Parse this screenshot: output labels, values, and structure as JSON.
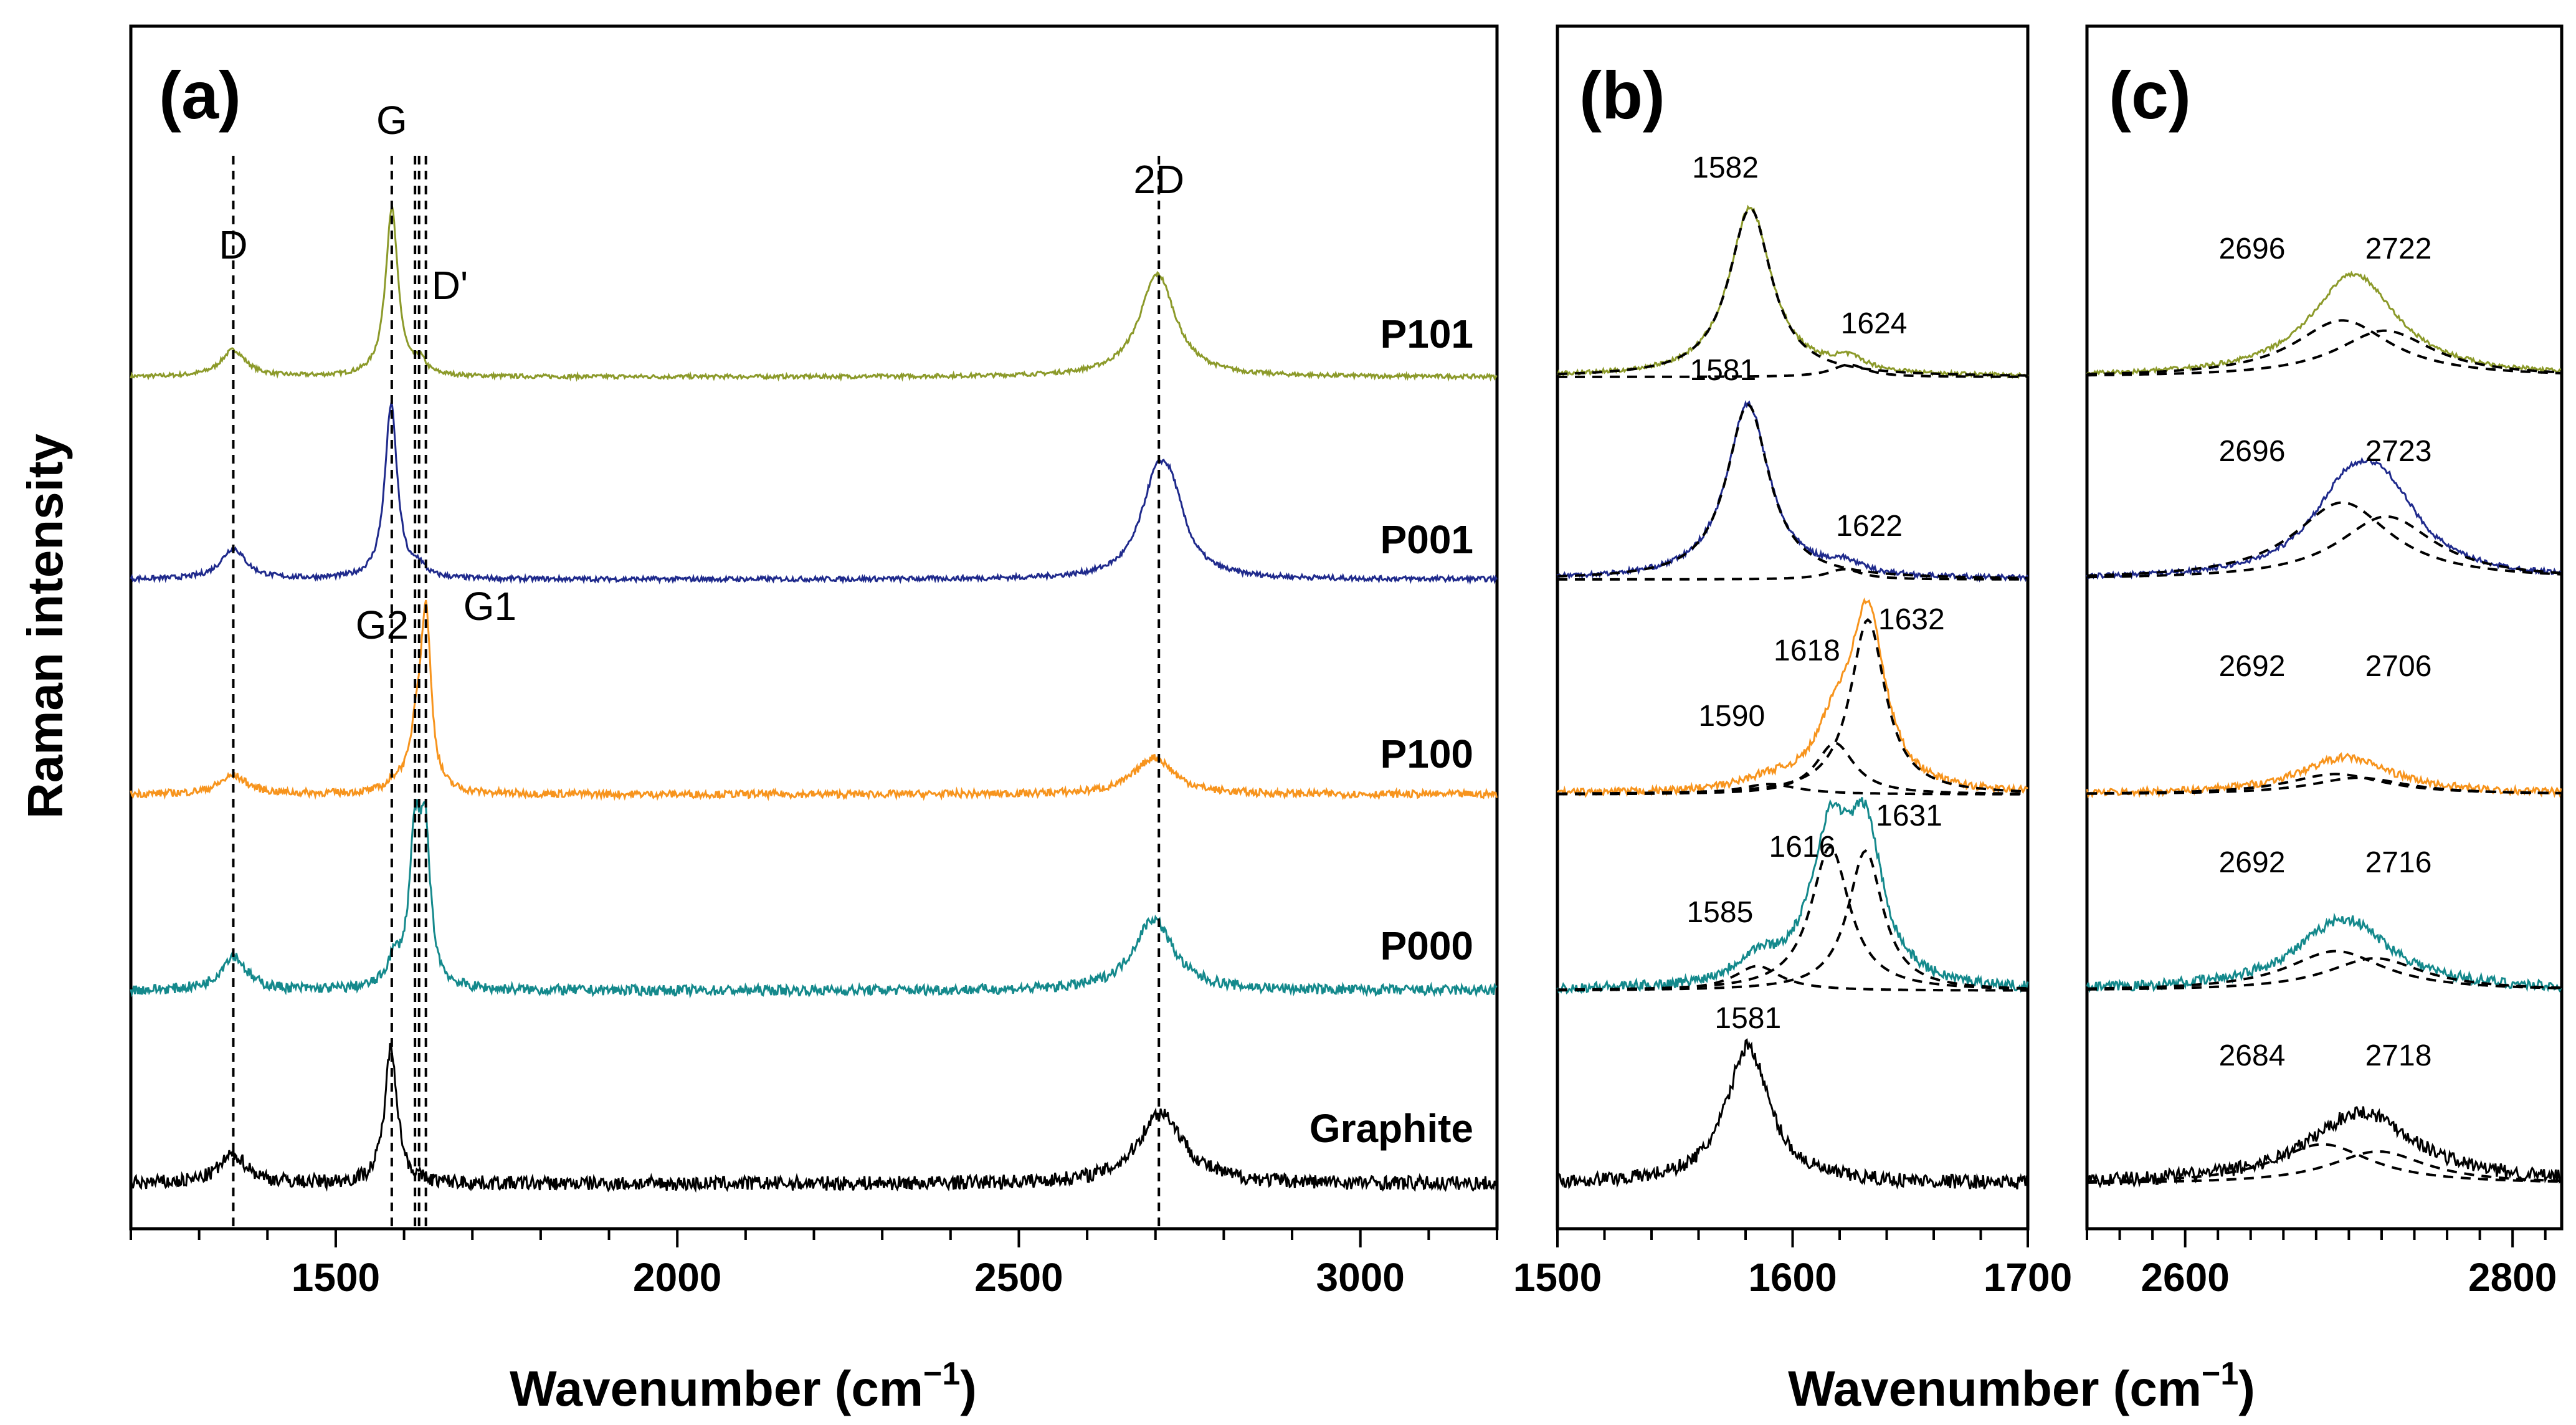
{
  "chart_data": [
    {
      "panel": "(a)",
      "type": "line",
      "xlabel": "Wavenumber (cm",
      "xlabel_sup": "−1",
      "xlabel_close": ")",
      "ylabel": "Raman intensity",
      "xlim": [
        1200,
        3200
      ],
      "xticks": [
        "1500",
        "2000",
        "2500",
        "3000"
      ],
      "peak_lines": [
        {
          "label": "D",
          "x": 1350
        },
        {
          "label": "G",
          "x": 1582
        },
        {
          "label": "D'",
          "x": 1622
        },
        {
          "label": "G2",
          "x": 1616
        },
        {
          "label": "G1",
          "x": 1632
        },
        {
          "label": "2D",
          "x": 2705
        }
      ],
      "series": [
        {
          "name": "P101",
          "color": "#8c9a2a",
          "noise": 0.01,
          "peaks": [
            [
              1350,
              0.13,
              22
            ],
            [
              1582,
              0.82,
              11
            ],
            [
              1624,
              0.06,
              9
            ],
            [
              2703,
              0.5,
              32
            ]
          ]
        },
        {
          "name": "P001",
          "color": "#1f2a8c",
          "noise": 0.012,
          "peaks": [
            [
              1350,
              0.15,
              22
            ],
            [
              1581,
              0.85,
              11
            ],
            [
              1622,
              0.05,
              9
            ],
            [
              2700,
              0.38,
              28
            ],
            [
              2723,
              0.3,
              26
            ]
          ]
        },
        {
          "name": "P100",
          "color": "#f7941d",
          "noise": 0.018,
          "peaks": [
            [
              1350,
              0.09,
              25
            ],
            [
              1590,
              0.05,
              15
            ],
            [
              1618,
              0.25,
              10
            ],
            [
              1632,
              0.85,
              9
            ],
            [
              2698,
              0.18,
              35
            ]
          ]
        },
        {
          "name": "P000",
          "color": "#14898c",
          "noise": 0.025,
          "peaks": [
            [
              1350,
              0.17,
              22
            ],
            [
              1585,
              0.12,
              12
            ],
            [
              1616,
              0.7,
              10
            ],
            [
              1631,
              0.68,
              9
            ],
            [
              2697,
              0.35,
              35
            ]
          ]
        },
        {
          "name": "Graphite",
          "color": "#000000",
          "noise": 0.035,
          "peaks": [
            [
              1350,
              0.14,
              25
            ],
            [
              1581,
              0.67,
              11
            ],
            [
              2708,
              0.35,
              40
            ]
          ]
        }
      ]
    },
    {
      "panel": "(b)",
      "type": "line",
      "xlim": [
        1500,
        1700
      ],
      "xticks": [
        "1500",
        "1600",
        "1700"
      ],
      "fits": [
        {
          "series": "P101",
          "peak_labels": [
            "1582",
            "1624"
          ],
          "peak_positions": [
            1582,
            1624
          ]
        },
        {
          "series": "P001",
          "peak_labels": [
            "1581",
            "1622"
          ],
          "peak_positions": [
            1581,
            1622
          ]
        },
        {
          "series": "P100",
          "peak_labels": [
            "1590",
            "1618",
            "1632"
          ],
          "peak_positions": [
            1590,
            1618,
            1632
          ]
        },
        {
          "series": "P000",
          "peak_labels": [
            "1585",
            "1616",
            "1631"
          ],
          "peak_positions": [
            1585,
            1616,
            1631
          ]
        },
        {
          "series": "Graphite",
          "peak_labels": [
            "1581"
          ],
          "peak_positions": [
            1581
          ]
        }
      ]
    },
    {
      "panel": "(c)",
      "type": "line",
      "xlim": [
        2540,
        2830
      ],
      "xticks": [
        "2600",
        "2800"
      ],
      "fits": [
        {
          "series": "P101",
          "peak_labels": [
            "2696",
            "2722"
          ],
          "peak_positions": [
            2696,
            2722
          ]
        },
        {
          "series": "P001",
          "peak_labels": [
            "2696",
            "2723"
          ],
          "peak_positions": [
            2696,
            2723
          ]
        },
        {
          "series": "P100",
          "peak_labels": [
            "2692",
            "2706"
          ],
          "peak_positions": [
            2692,
            2706
          ]
        },
        {
          "series": "P000",
          "peak_labels": [
            "2692",
            "2716"
          ],
          "peak_positions": [
            2692,
            2716
          ]
        },
        {
          "series": "Graphite",
          "peak_labels": [
            "2684",
            "2718"
          ],
          "peak_positions": [
            2684,
            2718
          ]
        }
      ]
    }
  ]
}
